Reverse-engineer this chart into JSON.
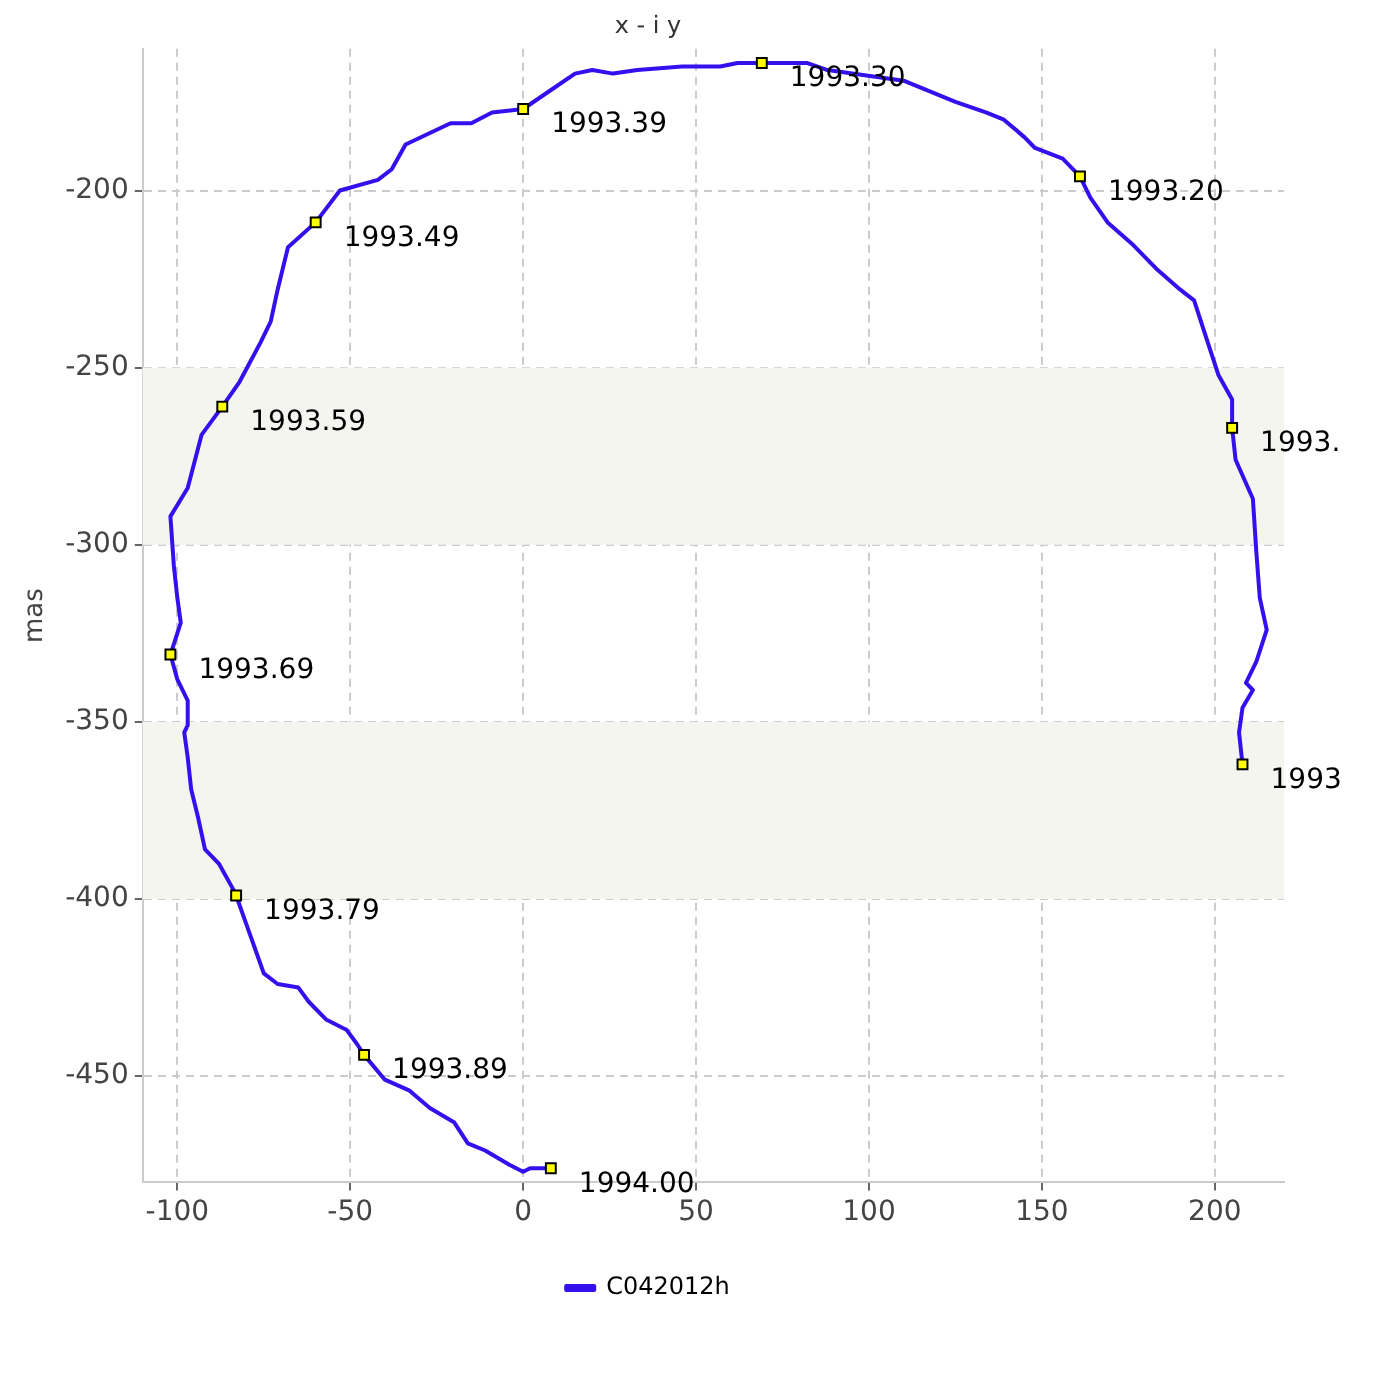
{
  "chart_data": {
    "type": "line",
    "title": "x - i y",
    "ylabel": "mas",
    "xlim": [
      -110,
      220
    ],
    "xticks": [
      -100,
      -50,
      0,
      50,
      100,
      150,
      200
    ],
    "ylim": [
      -480,
      -160
    ],
    "yticks": [
      -450,
      -400,
      -350,
      -300,
      -250,
      -200
    ],
    "grid": true,
    "legend": "bottom",
    "bands": [
      {
        "axis": "y",
        "from": -300,
        "to": -250,
        "color": "#f5f5f0"
      },
      {
        "axis": "y",
        "from": -400,
        "to": -350,
        "color": "#f5f5f0"
      }
    ],
    "series": [
      {
        "name": "C042012h",
        "type": "line",
        "color": "#3311ee",
        "x": [
          208,
          207,
          208,
          211,
          209,
          212,
          215,
          213,
          212,
          211,
          206,
          205,
          205,
          201,
          198,
          194,
          190,
          183,
          176,
          169,
          164,
          161,
          156,
          148,
          145,
          139,
          134,
          125,
          110,
          88,
          82,
          69,
          62,
          57,
          46,
          33,
          26,
          20,
          15,
          9,
          0,
          -9,
          -15,
          -21,
          -34,
          -38,
          -42,
          -53,
          -60,
          -68,
          -71,
          -73,
          -76,
          -82,
          -87,
          -93,
          -97,
          -102,
          -101,
          -100,
          -99,
          -102,
          -100,
          -97,
          -97,
          -98,
          -97,
          -96,
          -94,
          -92,
          -88,
          -84,
          -83,
          -79,
          -75,
          -71,
          -65,
          -62,
          -57,
          -51,
          -48,
          -46,
          -40,
          -33,
          -27,
          -20,
          -16,
          -11,
          -4,
          0,
          2,
          8
        ],
        "values": [
          -362,
          -353,
          -346,
          -341,
          -339,
          -333,
          -324,
          -315,
          -302,
          -287,
          -276,
          -267,
          -259,
          -252,
          -243,
          -231,
          -228,
          -222,
          -215,
          -209,
          -202,
          -196,
          -191,
          -188,
          -185,
          -180,
          -178,
          -175,
          -169,
          -166,
          -164,
          -164,
          -164,
          -165,
          -165,
          -166,
          -167,
          -166,
          -167,
          -171,
          -177,
          -178,
          -181,
          -181,
          -187,
          -194,
          -197,
          -200,
          -209,
          -216,
          -228,
          -237,
          -243,
          -254,
          -261,
          -269,
          -284,
          -292,
          -306,
          -315,
          -322,
          -331,
          -338,
          -344,
          -351,
          -353,
          -360,
          -369,
          -377,
          -386,
          -390,
          -397,
          -399,
          -410,
          -421,
          -424,
          -425,
          -429,
          -434,
          -437,
          -441,
          -444,
          -451,
          -454,
          -459,
          -463,
          -469,
          -471,
          -475,
          -477,
          -476,
          -476
        ]
      },
      {
        "type": "scatter",
        "marker": "square",
        "color": "#ffff00",
        "x": [
          208,
          205,
          161,
          69,
          0,
          -60,
          -87,
          -102,
          -83,
          -46,
          8
        ],
        "values": [
          -362,
          -267,
          -196,
          -164,
          -177,
          -209,
          -261,
          -331,
          -399,
          -444,
          -476
        ]
      }
    ],
    "annotations": [
      {
        "text": "1993",
        "x": 208,
        "y": -362
      },
      {
        "text": "1993.",
        "x": 205,
        "y": -267
      },
      {
        "text": "1993.20",
        "x": 161,
        "y": -196
      },
      {
        "text": "1993.30",
        "x": 69,
        "y": -164
      },
      {
        "text": "1993.39",
        "x": 0,
        "y": -177
      },
      {
        "text": "1993.49",
        "x": -60,
        "y": -209
      },
      {
        "text": "1993.59",
        "x": -87,
        "y": -261
      },
      {
        "text": "1993.69",
        "x": -102,
        "y": -331
      },
      {
        "text": "1993.79",
        "x": -83,
        "y": -399
      },
      {
        "text": "1993.89",
        "x": -46,
        "y": -444
      },
      {
        "text": "1994.00",
        "x": 8,
        "y": -476
      }
    ]
  }
}
